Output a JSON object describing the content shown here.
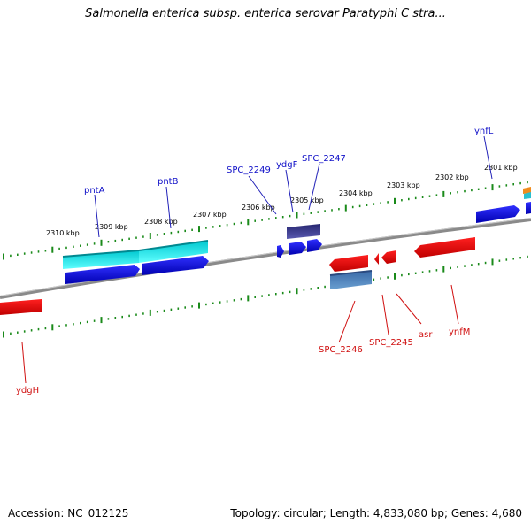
{
  "title": "Salmonella enterica subsp. enterica serovar Paratyphi C stra...",
  "footer": {
    "accession": "Accession: NC_012125",
    "topology": "Topology: circular; Length: 4,833,080 bp; Genes: 4,680"
  },
  "ticks": [
    "2310 kbp",
    "2309 kbp",
    "2308 kbp",
    "2307 kbp",
    "2306 kbp",
    "2305 kbp",
    "2304 kbp",
    "2303 kbp",
    "2302 kbp",
    "2301 kbp"
  ],
  "forward_genes": [
    "pntA",
    "pntB",
    "SPC_2249",
    "ydgF",
    "SPC_2247",
    "ynfL"
  ],
  "reverse_genes": [
    "ydgH",
    "SPC_2246",
    "SPC_2245",
    "asr",
    "ynfM"
  ],
  "colors": {
    "forward_strand": "#0000ee",
    "reverse_strand": "#ee0000",
    "cyan_feature": "#00e5ee",
    "purple_feature": "#3a3a8c",
    "steelblue_feature": "#4a7fb8",
    "backbone": "#888888",
    "tick": "#1a8a1a"
  }
}
